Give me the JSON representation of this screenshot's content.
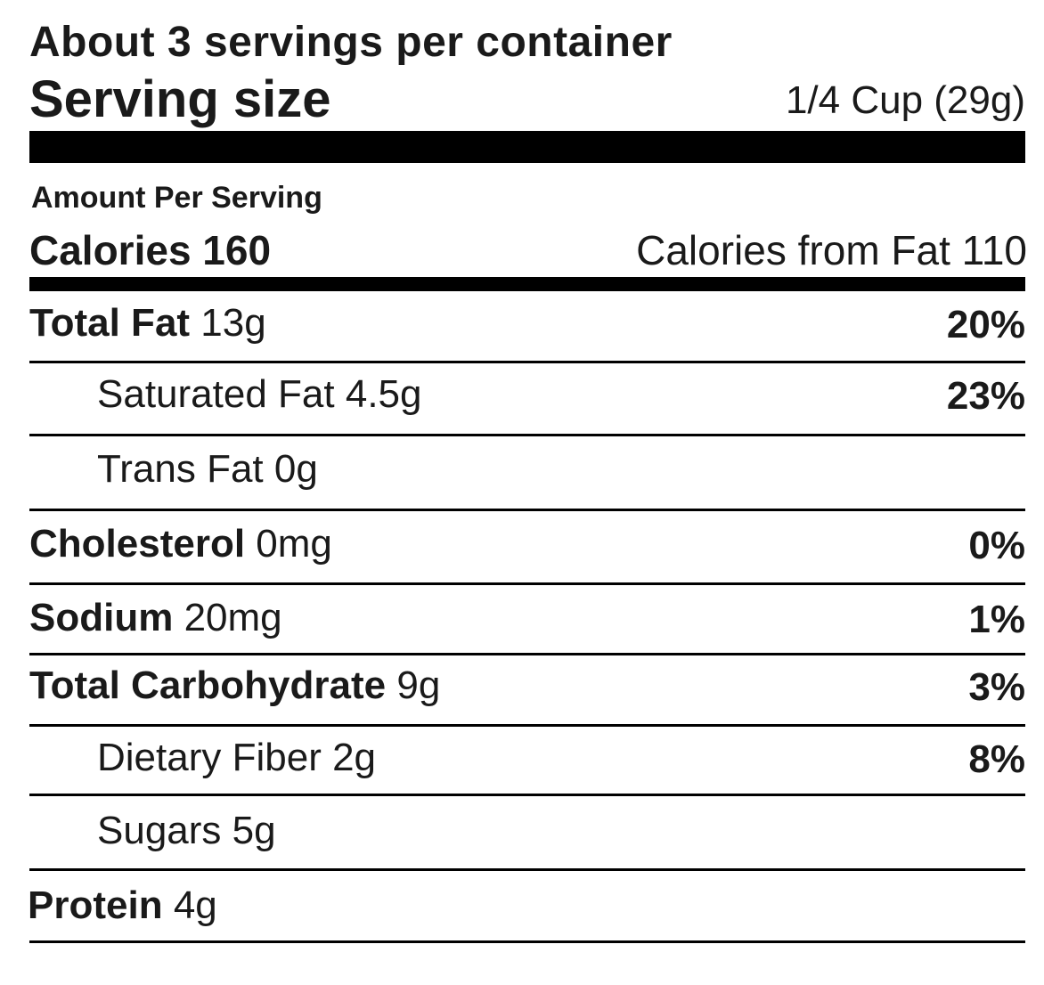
{
  "label": {
    "servings_per_container": "About 3 servings per container",
    "serving_size_label": "Serving size",
    "serving_size_value": "1/4 Cup (29g)",
    "amount_per_serving": "Amount Per Serving",
    "calories_label": "Calories 160",
    "calories_from_fat": "Calories from Fat 110",
    "nutrients": [
      {
        "name": "Total Fat",
        "amount": "13g",
        "dv": "20%"
      },
      {
        "name": "Saturated Fat",
        "amount": "4.5g",
        "dv": "23%"
      },
      {
        "name": "Trans Fat",
        "amount": "0g",
        "dv": ""
      },
      {
        "name": "Cholesterol",
        "amount": "0mg",
        "dv": "0%"
      },
      {
        "name": "Sodium",
        "amount": "20mg",
        "dv": "1%"
      },
      {
        "name": "Total Carbohydrate",
        "amount": "9g",
        "dv": "3%"
      },
      {
        "name": "Dietary Fiber",
        "amount": "2g",
        "dv": "8%"
      },
      {
        "name": "Sugars",
        "amount": "5g",
        "dv": ""
      },
      {
        "name": "Protein",
        "amount": "4g",
        "dv": ""
      }
    ]
  }
}
